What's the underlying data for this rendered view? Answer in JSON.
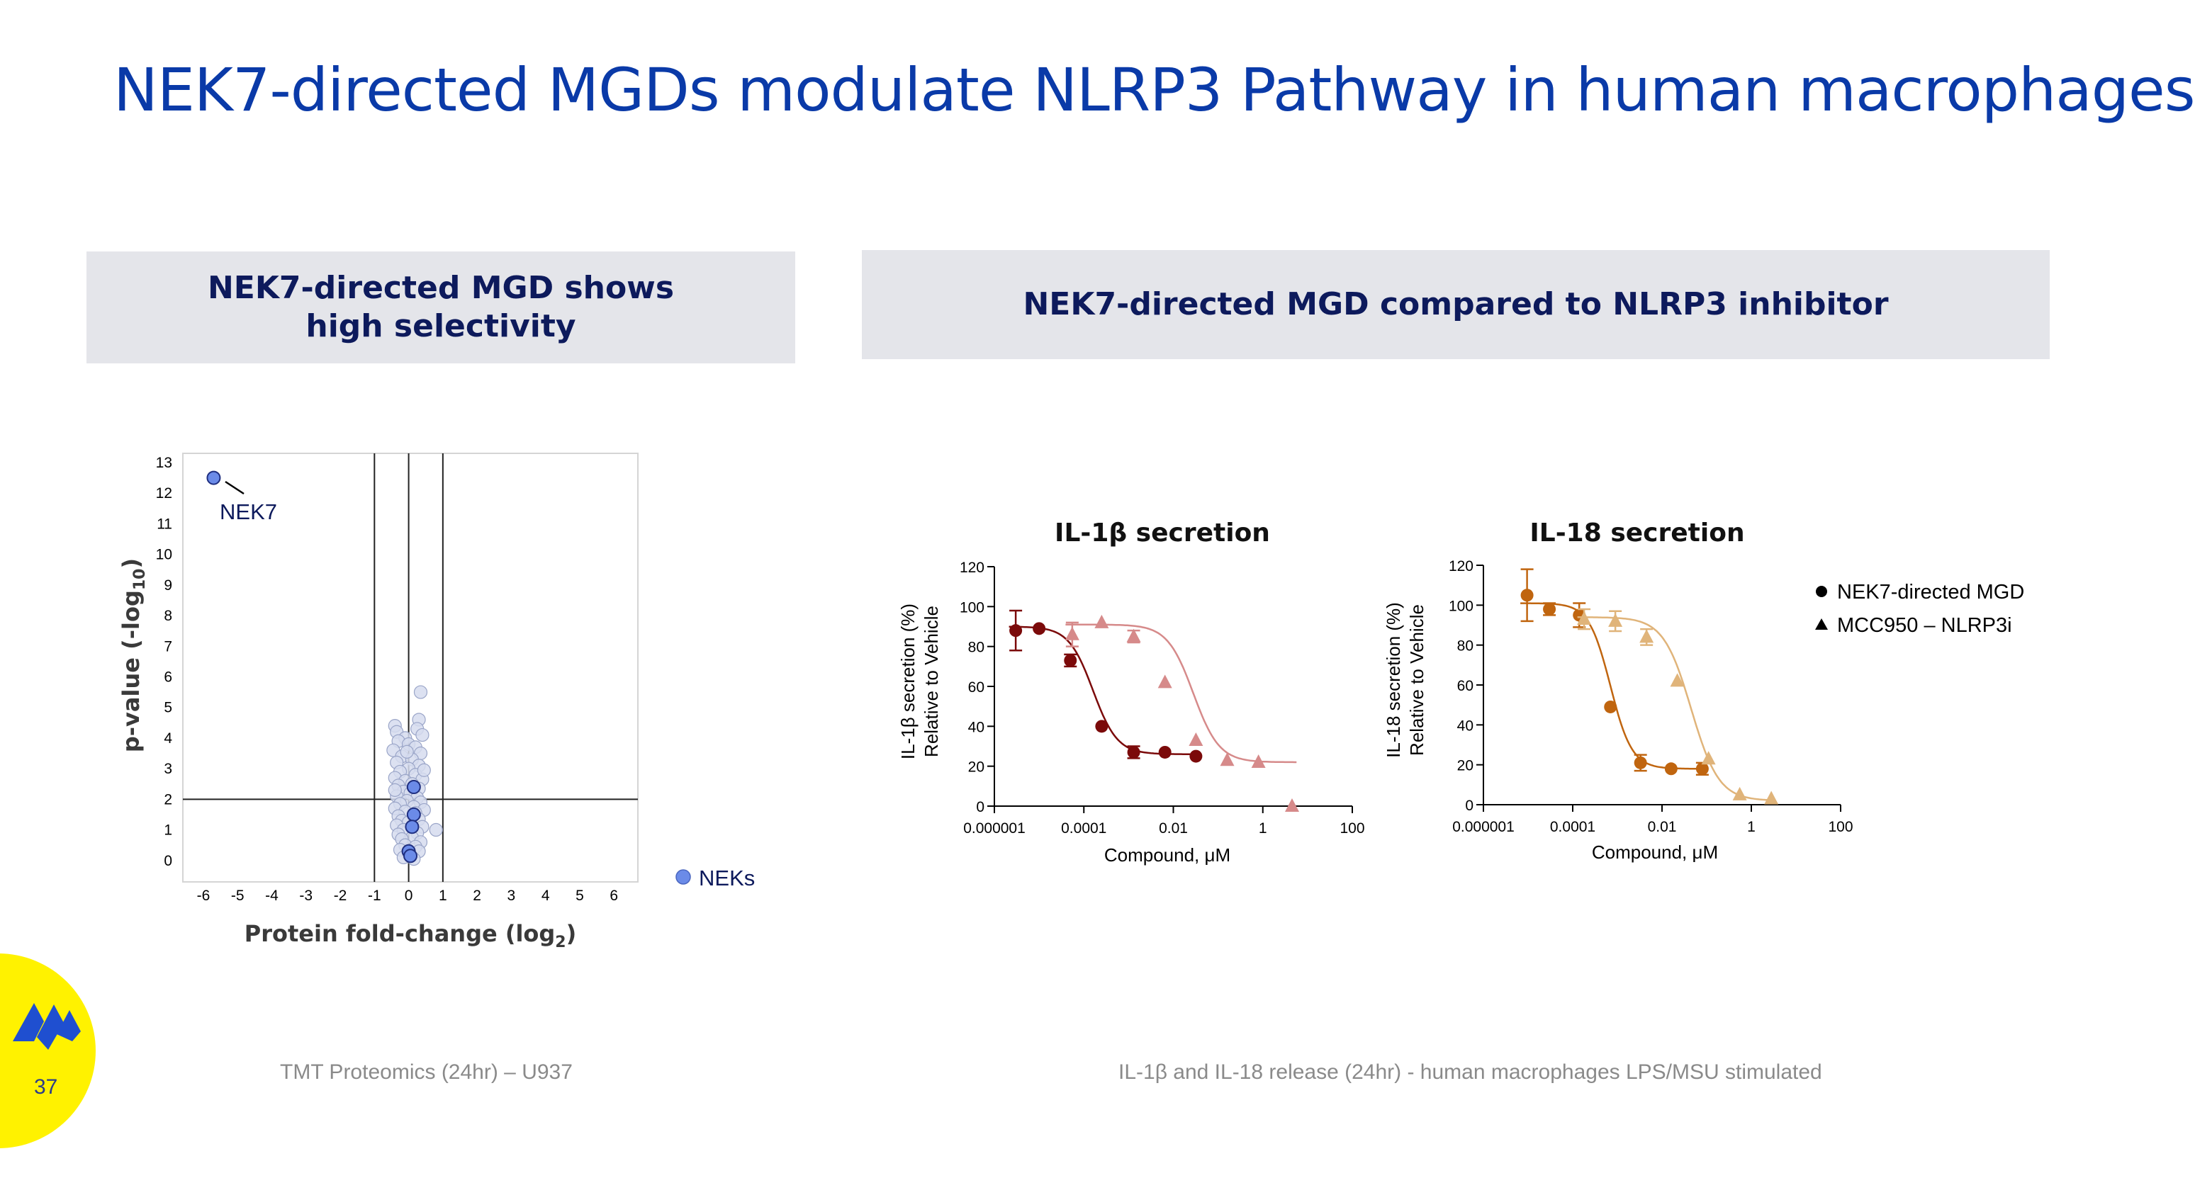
{
  "slide": {
    "title": "NEK7-directed MGDs modulate NLRP3 Pathway in human macrophages",
    "page_number": "37",
    "left_header_line1": "NEK7-directed MGD shows",
    "left_header_line2": "high selectivity",
    "right_header": "NEK7-directed MGD compared to NLRP3 inhibitor",
    "left_footer": "TMT Proteomics (24hr) – U937",
    "right_footer": "IL-1β and IL-18 release (24hr) - human macrophages LPS/MSU stimulated"
  },
  "colors": {
    "title": "#0a3aa8",
    "header_bg": "#e4e5ea",
    "header_text": "#0d1a5c",
    "logo_bg": "#fff200",
    "logo_mark": "#1f4fd0",
    "nek_point": "#6b8be8",
    "bg_point": "#d6dcef",
    "il1b_mgd": "#7b0a0a",
    "il1b_mcc": "#d68a8a",
    "il18_mgd": "#c0650f",
    "il18_mcc": "#e0b47a"
  },
  "chart_data": [
    {
      "type": "scatter",
      "xlabel": "Protein fold-change (log",
      "xlabel_sub": "2",
      "xlabel_close": ")",
      "ylabel": "p-value (-log",
      "ylabel_sub": "10",
      "ylabel_close": ")",
      "xlim": [
        -6.6,
        6.7
      ],
      "ylim": [
        -0.7,
        13.3
      ],
      "xticks": [
        "-6",
        "-5",
        "-4",
        "-3",
        "-2",
        "-1",
        "0",
        "1",
        "2",
        "3",
        "4",
        "5",
        "6"
      ],
      "yticks": [
        "0",
        "1",
        "2",
        "3",
        "4",
        "5",
        "6",
        "7",
        "8",
        "9",
        "10",
        "11",
        "12",
        "13"
      ],
      "vertical_lines": [
        -1,
        0,
        1
      ],
      "horizontal_line": 2,
      "legend": "NEKs",
      "annotation": "NEK7",
      "nek_points": [
        {
          "x": -5.7,
          "y": 12.5
        },
        {
          "x": 0.15,
          "y": 2.4
        },
        {
          "x": 0.15,
          "y": 1.5
        },
        {
          "x": 0.1,
          "y": 1.1
        },
        {
          "x": 0.0,
          "y": 0.3
        },
        {
          "x": 0.05,
          "y": 0.15
        }
      ],
      "background_points": [
        {
          "x": 0.35,
          "y": 5.5
        },
        {
          "x": -0.4,
          "y": 4.4
        },
        {
          "x": 0.3,
          "y": 4.6
        },
        {
          "x": -0.35,
          "y": 4.2
        },
        {
          "x": 0.25,
          "y": 4.3
        },
        {
          "x": -0.1,
          "y": 4.0
        },
        {
          "x": 0.4,
          "y": 4.1
        },
        {
          "x": -0.3,
          "y": 3.9
        },
        {
          "x": 0.0,
          "y": 3.8
        },
        {
          "x": 0.2,
          "y": 3.7
        },
        {
          "x": -0.45,
          "y": 3.6
        },
        {
          "x": 0.35,
          "y": 3.5
        },
        {
          "x": -0.2,
          "y": 3.4
        },
        {
          "x": 0.1,
          "y": 3.3
        },
        {
          "x": -0.35,
          "y": 3.2
        },
        {
          "x": 0.3,
          "y": 3.1
        },
        {
          "x": 0.0,
          "y": 3.0
        },
        {
          "x": -0.25,
          "y": 2.9
        },
        {
          "x": 0.2,
          "y": 2.8
        },
        {
          "x": -0.4,
          "y": 2.7
        },
        {
          "x": 0.4,
          "y": 2.65
        },
        {
          "x": -0.1,
          "y": 2.6
        },
        {
          "x": 0.1,
          "y": 2.5
        },
        {
          "x": -0.3,
          "y": 2.45
        },
        {
          "x": 0.3,
          "y": 2.35
        },
        {
          "x": -0.15,
          "y": 2.25
        },
        {
          "x": 0.05,
          "y": 2.2
        },
        {
          "x": -0.35,
          "y": 2.1
        },
        {
          "x": 0.25,
          "y": 2.05
        },
        {
          "x": -0.05,
          "y": 1.95
        },
        {
          "x": 0.35,
          "y": 1.9
        },
        {
          "x": -0.25,
          "y": 1.85
        },
        {
          "x": 0.15,
          "y": 1.75
        },
        {
          "x": -0.4,
          "y": 1.7
        },
        {
          "x": 0.45,
          "y": 1.65
        },
        {
          "x": -0.1,
          "y": 1.6
        },
        {
          "x": 0.2,
          "y": 1.55
        },
        {
          "x": -0.3,
          "y": 1.45
        },
        {
          "x": 0.3,
          "y": 1.35
        },
        {
          "x": -0.2,
          "y": 1.3
        },
        {
          "x": 0.0,
          "y": 1.25
        },
        {
          "x": -0.35,
          "y": 1.15
        },
        {
          "x": 0.4,
          "y": 1.1
        },
        {
          "x": 0.8,
          "y": 1.0
        },
        {
          "x": -0.15,
          "y": 1.0
        },
        {
          "x": 0.25,
          "y": 0.9
        },
        {
          "x": -0.3,
          "y": 0.85
        },
        {
          "x": 0.1,
          "y": 0.75
        },
        {
          "x": -0.2,
          "y": 0.7
        },
        {
          "x": 0.35,
          "y": 0.6
        },
        {
          "x": -0.1,
          "y": 0.5
        },
        {
          "x": 0.2,
          "y": 0.45
        },
        {
          "x": -0.25,
          "y": 0.35
        },
        {
          "x": 0.3,
          "y": 0.3
        },
        {
          "x": 0.0,
          "y": 0.2
        },
        {
          "x": -0.15,
          "y": 0.1
        },
        {
          "x": 0.15,
          "y": 0.05
        },
        {
          "x": -0.4,
          "y": 2.3
        },
        {
          "x": 0.45,
          "y": 2.95
        },
        {
          "x": -0.05,
          "y": 3.55
        }
      ]
    },
    {
      "type": "line",
      "scale": "log",
      "title": "IL-1β secretion",
      "ylabel_line1": "IL-1β secretion (%)",
      "ylabel_line2": "Relative to Vehicle",
      "xlabel": "Compound, μM",
      "xlim": [
        1e-06,
        100
      ],
      "ylim": [
        0,
        120
      ],
      "xticks": [
        "0.000001",
        "0.0001",
        "0.01",
        "1",
        "100"
      ],
      "yticks": [
        "0",
        "20",
        "40",
        "60",
        "80",
        "100",
        "120"
      ],
      "series": [
        {
          "marker": "circle",
          "x": [
            3e-06,
            1e-05,
            5e-05,
            0.00025,
            0.0013,
            0.0065,
            0.032
          ],
          "y": [
            88,
            89,
            73,
            40,
            27,
            27,
            25
          ],
          "err": [
            10,
            0,
            3,
            0,
            3,
            0,
            0
          ],
          "top": 90,
          "bottom": 26,
          "ic50": 0.00016,
          "hill": 1.6
        },
        {
          "marker": "triangle",
          "x": [
            5.5e-05,
            0.00025,
            0.0013,
            0.0065,
            0.032,
            0.16,
            0.8,
            4.5
          ],
          "y": [
            86,
            92,
            85,
            62,
            33,
            23,
            22,
            0
          ],
          "err": [
            6,
            0,
            3,
            0,
            0,
            0,
            0,
            0
          ],
          "top": 91,
          "bottom": 22,
          "ic50": 0.028,
          "hill": 1.5
        }
      ]
    },
    {
      "type": "line",
      "scale": "log",
      "title": "IL-18 secretion",
      "ylabel_line1": "IL-18 secretion (%)",
      "ylabel_line2": "Relative to Vehicle",
      "xlabel": "Compound, μM",
      "xlim": [
        1e-06,
        100
      ],
      "ylim": [
        0,
        120
      ],
      "xticks": [
        "0.000001",
        "0.0001",
        "0.01",
        "1",
        "100"
      ],
      "yticks": [
        "0",
        "20",
        "40",
        "60",
        "80",
        "100",
        "120"
      ],
      "series": [
        {
          "name": "NEK7-directed MGD",
          "marker": "circle",
          "x": [
            9.5e-06,
            3e-05,
            0.00014,
            0.0007,
            0.0033,
            0.016,
            0.08
          ],
          "y": [
            105,
            98,
            95,
            49,
            21,
            18,
            18
          ],
          "err": [
            13,
            3,
            6,
            0,
            4,
            0,
            3
          ],
          "top": 101,
          "bottom": 18,
          "ic50": 0.0007,
          "hill": 1.8
        },
        {
          "name": "MCC950 – NLRP3i",
          "marker": "triangle",
          "x": [
            0.00018,
            0.0009,
            0.0045,
            0.022,
            0.11,
            0.55,
            2.8
          ],
          "y": [
            93,
            92,
            84,
            62,
            23,
            5,
            3
          ],
          "err": [
            5,
            5,
            4,
            0,
            0,
            0,
            0
          ],
          "top": 94,
          "bottom": 2,
          "ic50": 0.045,
          "hill": 1.4
        }
      ]
    }
  ]
}
